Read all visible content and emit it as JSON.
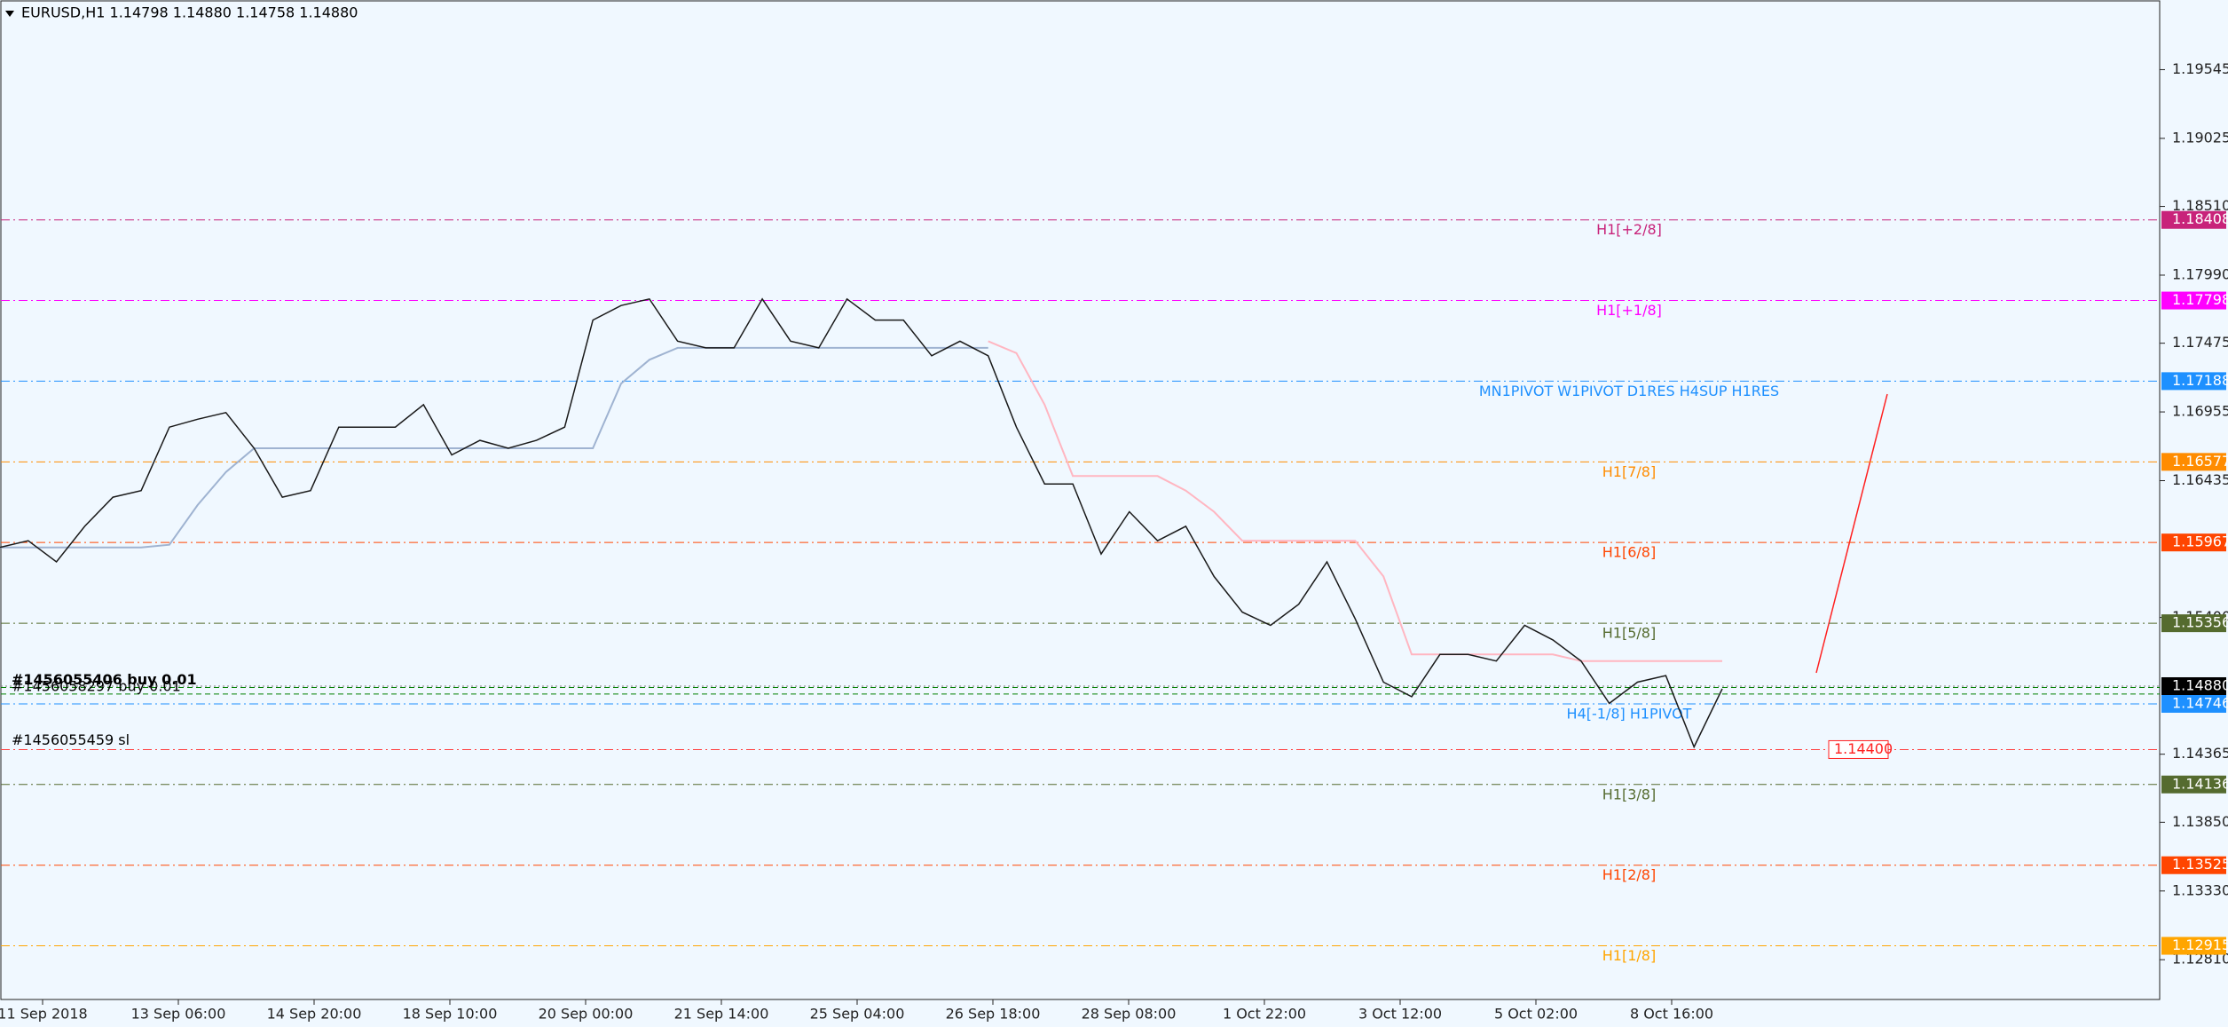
{
  "header": {
    "caption": "EURUSD,H1  1.14798 1.14880 1.14758 1.14880"
  },
  "chart_data": {
    "type": "line",
    "ylim": [
      1.12509,
      1.20072
    ],
    "yticks": [
      1.19545,
      1.19025,
      {
        "value": 1.1851,
        "label": "1.18510"
      },
      {
        "value": 1.1799,
        "label": "1.17990"
      },
      1.17475,
      1.16955,
      1.16435,
      {
        "value": 1.154,
        "label": "1.15400"
      },
      1.14365,
      {
        "value": 1.1385,
        "label": "1.13850"
      },
      {
        "value": 1.1333,
        "label": "1.13330"
      },
      {
        "value": 1.1281,
        "label": "1.12810"
      }
    ],
    "x_labels": [
      "11 Sep 2018",
      "13 Sep 06:00",
      "14 Sep 20:00",
      "18 Sep 10:00",
      "20 Sep 00:00",
      "21 Sep 14:00",
      "25 Sep 04:00",
      "26 Sep 18:00",
      "28 Sep 08:00",
      "1 Oct 22:00",
      "3 Oct 12:00",
      "5 Oct 02:00",
      "8 Oct 16:00"
    ],
    "series": [
      {
        "color": "#1a1a1a",
        "values": [
          1.1593,
          1.1598,
          1.1582,
          1.1609,
          1.1631,
          1.1636,
          1.1684,
          1.169,
          1.1695,
          1.1668,
          1.1631,
          1.1636,
          1.1684,
          1.1684,
          1.1684,
          1.1701,
          1.1663,
          1.1674,
          1.1668,
          1.1674,
          1.1684,
          1.1765,
          1.1776,
          1.1781,
          1.1749,
          1.1744,
          1.1744,
          1.1781,
          1.1749,
          1.1744,
          1.1781,
          1.1765,
          1.1765,
          1.1738,
          1.1749,
          1.1738,
          1.1684,
          1.1641,
          1.1641,
          1.1588,
          1.162,
          1.1598,
          1.1609,
          1.1571,
          1.1544,
          1.1534,
          1.155,
          1.1582,
          1.1539,
          1.1491,
          1.148,
          1.1512,
          1.1512,
          1.1507,
          1.1534,
          1.1523,
          1.1507,
          1.1475,
          1.1491,
          1.1496,
          1.1442,
          1.1486
        ]
      },
      {
        "color": "#9fb3d1",
        "values": [
          1.1593,
          1.1593,
          1.1593,
          1.1593,
          1.1593,
          1.1593,
          1.1595,
          1.1625,
          1.165,
          1.1668,
          1.1668,
          1.1668,
          1.1668,
          1.1668,
          1.1668,
          1.1668,
          1.1668,
          1.1668,
          1.1668,
          1.1668,
          1.1668,
          1.1668,
          1.1717,
          1.1735,
          1.1744,
          1.1744,
          1.1744,
          1.1744,
          1.1744,
          1.1744,
          1.1744,
          1.1744,
          1.1744,
          1.1744,
          1.1744,
          1.1744,
          null,
          null,
          null,
          null,
          null,
          null,
          null,
          null,
          null,
          null,
          null,
          null,
          null,
          null,
          null,
          null,
          null,
          null,
          null,
          null,
          null,
          null,
          null,
          null,
          null,
          null
        ]
      },
      {
        "color": "#ffb6c1",
        "values": [
          null,
          null,
          null,
          null,
          null,
          null,
          null,
          null,
          null,
          null,
          null,
          null,
          null,
          null,
          null,
          null,
          null,
          null,
          null,
          null,
          null,
          null,
          null,
          null,
          null,
          null,
          null,
          null,
          null,
          null,
          null,
          null,
          null,
          null,
          null,
          1.1749,
          1.174,
          1.1701,
          1.1647,
          1.1647,
          1.1647,
          1.1647,
          1.1636,
          1.162,
          1.1598,
          1.1598,
          1.1598,
          1.1598,
          1.1598,
          1.1571,
          1.1512,
          1.1512,
          1.1512,
          1.1512,
          1.1512,
          1.1512,
          1.1507,
          1.1507,
          1.1507,
          1.1507,
          1.1507,
          1.1507
        ]
      }
    ],
    "levels": [
      {
        "label": "H1[+2/8]",
        "value": 1.18408,
        "color": "#c8237a"
      },
      {
        "label": "H1[+1/8]",
        "value": 1.17798,
        "color": "#ff00ff"
      },
      {
        "label": "MN1PIVOT W1PIVOT D1RES H4SUP H1RES",
        "value": 1.17188,
        "color": "#1e90ff"
      },
      {
        "label": "H1[7/8]",
        "value": 1.16577,
        "color": "#ff8c00"
      },
      {
        "label": "H1[6/8]",
        "value": 1.15967,
        "color": "#ff4500"
      },
      {
        "label": "H1[5/8]",
        "value": 1.15356,
        "color": "#556b2f"
      },
      {
        "label": "H4[-1/8] H1PIVOT",
        "value": 1.14746,
        "color": "#1e90ff"
      },
      {
        "label": "H1[3/8]",
        "value": 1.14136,
        "color": "#556b2f"
      },
      {
        "label": "H1[2/8]",
        "value": 1.13525,
        "color": "#ff4500"
      },
      {
        "label": "H1[1/8]",
        "value": 1.12915,
        "color": "#ffa500"
      }
    ],
    "current": {
      "value": 1.1488,
      "label": "1.14880"
    },
    "orders": [
      {
        "label": "#1456055406 buy 0.01",
        "value": 1.1487
      },
      {
        "label": "#1456058297 buy 0.01",
        "value": 1.1482
      }
    ],
    "stop": {
      "label": "#1456055459 sl",
      "value": 1.144,
      "tag": "1.14400"
    }
  }
}
